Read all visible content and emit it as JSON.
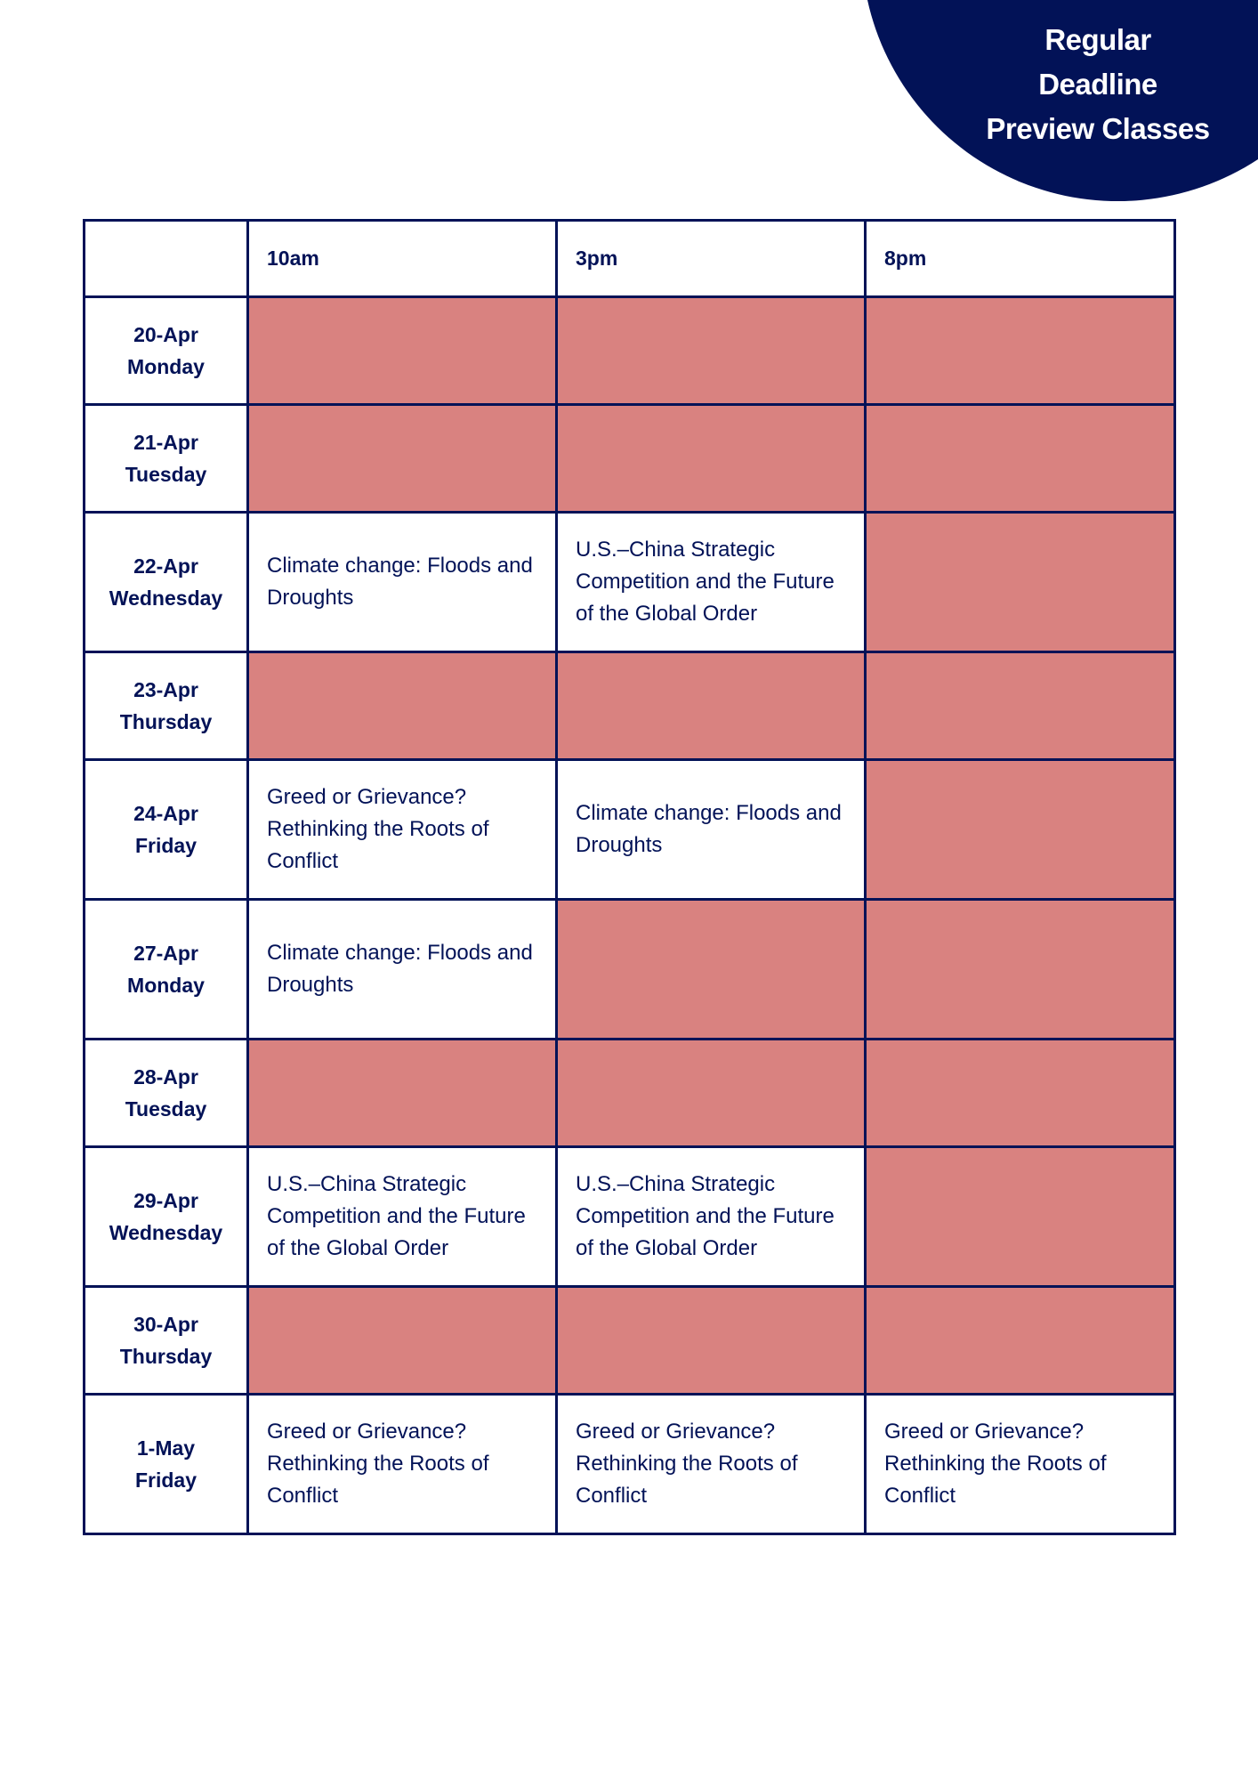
{
  "badge": {
    "lines": [
      "Regular",
      "Deadline",
      "Preview Classes"
    ]
  },
  "colors": {
    "navy": "#021257",
    "unavailable": "#d98280"
  },
  "table": {
    "corner": "",
    "columns": [
      "10am",
      "3pm",
      "8pm"
    ],
    "rows": [
      {
        "date": "20-Apr",
        "day": "Monday",
        "slots": [
          null,
          null,
          null
        ]
      },
      {
        "date": "21-Apr",
        "day": "Tuesday",
        "slots": [
          null,
          null,
          null
        ]
      },
      {
        "date": "22-Apr",
        "day": "Wednesday",
        "slots": [
          "Climate change: Floods and Droughts",
          "U.S.–China Strategic Competition and the Future of the Global Order",
          null
        ]
      },
      {
        "date": "23-Apr",
        "day": "Thursday",
        "slots": [
          null,
          null,
          null
        ]
      },
      {
        "date": "24-Apr",
        "day": "Friday",
        "slots": [
          "Greed or Grievance? Rethinking the Roots of Conflict",
          "Climate change: Floods and Droughts",
          null
        ]
      },
      {
        "date": "27-Apr",
        "day": "Monday",
        "slots": [
          "Climate change: Floods and Droughts",
          null,
          null
        ]
      },
      {
        "date": "28-Apr",
        "day": "Tuesday",
        "slots": [
          null,
          null,
          null
        ]
      },
      {
        "date": "29-Apr",
        "day": "Wednesday",
        "slots": [
          "U.S.–China Strategic Competition and the Future of the Global Order",
          "U.S.–China Strategic Competition and the Future of the Global Order",
          null
        ]
      },
      {
        "date": "30-Apr",
        "day": "Thursday",
        "slots": [
          null,
          null,
          null
        ]
      },
      {
        "date": "1-May",
        "day": "Friday",
        "slots": [
          "Greed or Grievance? Rethinking the Roots of Conflict",
          "Greed or Grievance? Rethinking the Roots of Conflict",
          "Greed or Grievance? Rethinking the Roots of Conflict"
        ]
      }
    ]
  }
}
